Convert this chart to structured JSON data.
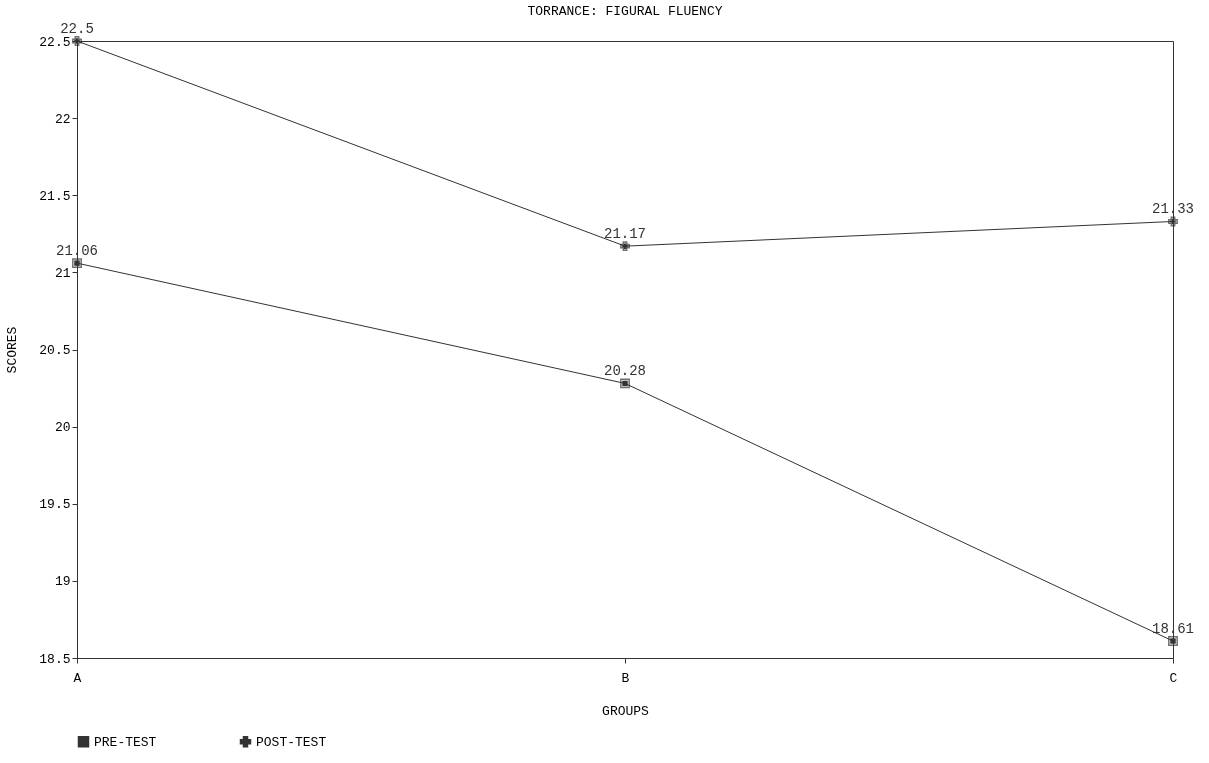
{
  "chart_data": {
    "type": "line",
    "title": "TORRANCE: FIGURAL FLUENCY",
    "xlabel": "GROUPS",
    "ylabel": "SCORES",
    "categories": [
      "A",
      "B",
      "C"
    ],
    "series": [
      {
        "name": "PRE-TEST",
        "color": "#333333",
        "marker": "square",
        "values": [
          21.06,
          20.28,
          18.61
        ]
      },
      {
        "name": "POST-TEST",
        "color": "#333333",
        "marker": "cross",
        "values": [
          22.5,
          21.17,
          21.33
        ]
      }
    ],
    "ylim": [
      18.5,
      22.5
    ],
    "yticks": [
      18.5,
      19,
      19.5,
      20,
      20.5,
      21,
      21.5,
      22,
      22.5
    ],
    "grid": false,
    "legend": "bottom",
    "data_labels": true,
    "line_style": "solid"
  }
}
